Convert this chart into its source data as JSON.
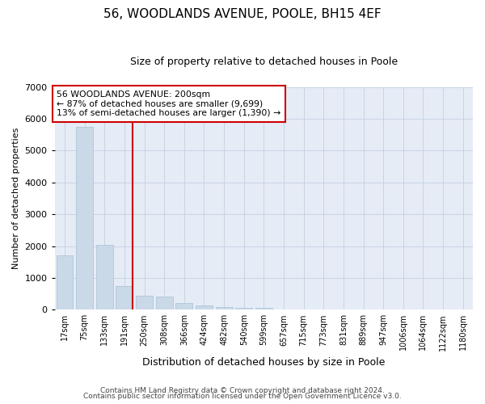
{
  "title": "56, WOODLANDS AVENUE, POOLE, BH15 4EF",
  "subtitle": "Size of property relative to detached houses in Poole",
  "xlabel": "Distribution of detached houses by size in Poole",
  "ylabel": "Number of detached properties",
  "bar_color": "#c9d9e8",
  "bar_edge_color": "#a8c0d4",
  "vline_color": "#cc0000",
  "vline_x_index": 3,
  "annotation_line1": "56 WOODLANDS AVENUE: 200sqm",
  "annotation_line2": "← 87% of detached houses are smaller (9,699)",
  "annotation_line3": "13% of semi-detached houses are larger (1,390) →",
  "annotation_box_color": "#ffffff",
  "annotation_box_edge": "#cc0000",
  "categories": [
    "17sqm",
    "75sqm",
    "133sqm",
    "191sqm",
    "250sqm",
    "308sqm",
    "366sqm",
    "424sqm",
    "482sqm",
    "540sqm",
    "599sqm",
    "657sqm",
    "715sqm",
    "773sqm",
    "831sqm",
    "889sqm",
    "947sqm",
    "1006sqm",
    "1064sqm",
    "1122sqm",
    "1180sqm"
  ],
  "values": [
    1700,
    5750,
    2050,
    750,
    430,
    420,
    200,
    130,
    95,
    55,
    65,
    20,
    15,
    10,
    5,
    5,
    3,
    2,
    2,
    1,
    1
  ],
  "ylim": [
    0,
    7000
  ],
  "yticks": [
    0,
    1000,
    2000,
    3000,
    4000,
    5000,
    6000,
    7000
  ],
  "grid_color": "#c8d4e4",
  "bg_color": "#e6ecf6",
  "footer1": "Contains HM Land Registry data © Crown copyright and database right 2024.",
  "footer2": "Contains public sector information licensed under the Open Government Licence v3.0.",
  "title_fontsize": 11,
  "subtitle_fontsize": 9,
  "footer_fontsize": 6.5
}
